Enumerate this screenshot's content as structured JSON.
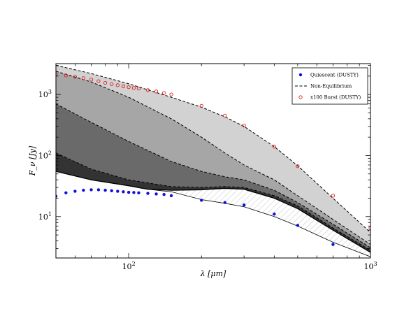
{
  "chart_data": {
    "type": "scatter",
    "xlabel": "λ [μm]",
    "ylabel": "F_ν [Jy]",
    "xscale": "log",
    "yscale": "log",
    "xlim": [
      50,
      1000
    ],
    "ylim": [
      2.1,
      3200
    ],
    "grid": false,
    "legend_position": "top-right",
    "x_ticks": [
      {
        "value": 100,
        "base": "10",
        "exp": "2"
      },
      {
        "value": 1000,
        "base": "10",
        "exp": "3"
      }
    ],
    "y_ticks": [
      {
        "value": 10,
        "base": "10",
        "exp": "1"
      },
      {
        "value": 100,
        "base": "10",
        "exp": "2"
      },
      {
        "value": 1000,
        "base": "10",
        "exp": "3"
      }
    ],
    "legend": [
      {
        "label": "Quiescent (DUSTY)",
        "marker": "filled-circle",
        "color": "#1010e0"
      },
      {
        "label": "Non-Equilibrium",
        "marker": "dashed-line",
        "color": "#000000"
      },
      {
        "label": "x100 Burst (DUSTY)",
        "marker": "open-circle",
        "color": "#e02020"
      }
    ],
    "series": [
      {
        "name": "Quiescent (DUSTY)",
        "style": "filled-circle",
        "color": "#1010e0",
        "x": [
          50,
          55,
          60,
          65,
          70,
          75,
          80,
          85,
          90,
          95,
          100,
          105,
          110,
          120,
          130,
          140,
          150,
          200,
          250,
          300,
          400,
          500,
          700
        ],
        "y": [
          21.5,
          24.5,
          26,
          27,
          27.5,
          27.5,
          27,
          26.5,
          26,
          25.5,
          25,
          24.8,
          24.5,
          24,
          23.5,
          23,
          22,
          18.5,
          17,
          15.5,
          11,
          7.2,
          3.5
        ]
      },
      {
        "name": "x100 Burst (DUSTY)",
        "style": "open-circle",
        "color": "#e02020",
        "x": [
          50,
          55,
          60,
          65,
          70,
          75,
          80,
          85,
          90,
          95,
          100,
          105,
          110,
          120,
          130,
          140,
          150,
          200,
          250,
          300,
          400,
          500,
          700,
          1000
        ],
        "y": [
          2150,
          2050,
          1950,
          1850,
          1750,
          1650,
          1550,
          1480,
          1420,
          1360,
          1320,
          1280,
          1250,
          1180,
          1120,
          1060,
          1000,
          650,
          450,
          310,
          140,
          67,
          22,
          6.5
        ]
      },
      {
        "name": "Non-Equilibrium",
        "style": "dashed-line",
        "color": "#000000",
        "curves": [
          {
            "x": [
              50,
              70,
              100,
              150,
              200,
              250,
              300,
              400,
              500,
              700,
              1000
            ],
            "y": [
              3000,
              2200,
              1500,
              900,
              620,
              430,
              300,
              140,
              68,
              20,
              5.5
            ]
          },
          {
            "x": [
              50,
              70,
              100,
              150,
              200,
              250,
              300,
              400,
              500,
              700,
              1000
            ],
            "y": [
              2400,
              1600,
              900,
              400,
              200,
              110,
              70,
              40,
              22,
              9,
              3.5
            ]
          },
          {
            "x": [
              50,
              70,
              100,
              150,
              200,
              250,
              300,
              400,
              500,
              700,
              1000
            ],
            "y": [
              700,
              350,
              170,
              80,
              55,
              45,
              40,
              27,
              17,
              7.5,
              3.1
            ]
          },
          {
            "x": [
              50,
              70,
              100,
              150,
              200,
              250,
              300,
              400,
              500,
              700,
              1000
            ],
            "y": [
              110,
              60,
              40,
              31,
              30,
              31,
              30,
              22,
              15,
              6.5,
              2.8
            ]
          }
        ]
      }
    ],
    "bands": [
      {
        "shade": "#d2d2d2",
        "upper": [
          [
            50,
            3000
          ],
          [
            70,
            2200
          ],
          [
            100,
            1500
          ],
          [
            150,
            900
          ],
          [
            200,
            620
          ],
          [
            250,
            430
          ],
          [
            300,
            300
          ],
          [
            400,
            140
          ],
          [
            500,
            68
          ],
          [
            700,
            20
          ],
          [
            1000,
            5.5
          ]
        ],
        "lower": [
          [
            50,
            2400
          ],
          [
            70,
            1600
          ],
          [
            100,
            900
          ],
          [
            150,
            400
          ],
          [
            200,
            200
          ],
          [
            250,
            110
          ],
          [
            300,
            70
          ],
          [
            400,
            40
          ],
          [
            500,
            22
          ],
          [
            700,
            9
          ],
          [
            1000,
            3.5
          ]
        ]
      },
      {
        "shade": "#a6a6a6",
        "upper": [
          [
            50,
            2400
          ],
          [
            70,
            1600
          ],
          [
            100,
            900
          ],
          [
            150,
            400
          ],
          [
            200,
            200
          ],
          [
            250,
            110
          ],
          [
            300,
            70
          ],
          [
            400,
            40
          ],
          [
            500,
            22
          ],
          [
            700,
            9
          ],
          [
            1000,
            3.5
          ]
        ],
        "lower": [
          [
            50,
            700
          ],
          [
            70,
            350
          ],
          [
            100,
            170
          ],
          [
            150,
            80
          ],
          [
            200,
            55
          ],
          [
            250,
            45
          ],
          [
            300,
            40
          ],
          [
            400,
            27
          ],
          [
            500,
            17
          ],
          [
            700,
            7.5
          ],
          [
            1000,
            3.1
          ]
        ]
      },
      {
        "shade": "#6a6a6a",
        "upper": [
          [
            50,
            700
          ],
          [
            70,
            350
          ],
          [
            100,
            170
          ],
          [
            150,
            80
          ],
          [
            200,
            55
          ],
          [
            250,
            45
          ],
          [
            300,
            40
          ],
          [
            400,
            27
          ],
          [
            500,
            17
          ],
          [
            700,
            7.5
          ],
          [
            1000,
            3.1
          ]
        ],
        "lower": [
          [
            50,
            110
          ],
          [
            70,
            60
          ],
          [
            100,
            40
          ],
          [
            150,
            31
          ],
          [
            200,
            30
          ],
          [
            250,
            31
          ],
          [
            300,
            30
          ],
          [
            400,
            22
          ],
          [
            500,
            15
          ],
          [
            700,
            6.5
          ],
          [
            1000,
            2.8
          ]
        ]
      },
      {
        "shade": "#333333",
        "upper": [
          [
            50,
            110
          ],
          [
            70,
            60
          ],
          [
            100,
            40
          ],
          [
            150,
            31
          ],
          [
            200,
            30
          ],
          [
            250,
            31
          ],
          [
            300,
            30
          ],
          [
            400,
            22
          ],
          [
            500,
            15
          ],
          [
            700,
            6.5
          ],
          [
            1000,
            2.8
          ]
        ],
        "lower": [
          [
            50,
            55
          ],
          [
            70,
            40
          ],
          [
            100,
            32
          ],
          [
            120,
            28
          ],
          [
            150,
            27
          ],
          [
            200,
            27.5
          ],
          [
            250,
            29
          ],
          [
            300,
            28
          ],
          [
            400,
            20
          ],
          [
            500,
            13.5
          ],
          [
            700,
            6
          ],
          [
            1000,
            2.6
          ]
        ]
      }
    ],
    "hatch_region": {
      "upper": [
        [
          50,
          55
        ],
        [
          70,
          40
        ],
        [
          100,
          32
        ],
        [
          120,
          28
        ],
        [
          150,
          27
        ],
        [
          200,
          27.5
        ],
        [
          250,
          29
        ],
        [
          300,
          28
        ],
        [
          400,
          20
        ],
        [
          500,
          13.5
        ],
        [
          700,
          6
        ],
        [
          1000,
          2.6
        ]
      ],
      "lower": [
        [
          50,
          55
        ],
        [
          70,
          40
        ],
        [
          100,
          32
        ],
        [
          120,
          28
        ],
        [
          150,
          25.5
        ],
        [
          200,
          19
        ],
        [
          250,
          16.5
        ],
        [
          300,
          14.5
        ],
        [
          400,
          10
        ],
        [
          500,
          7
        ],
        [
          700,
          3.8
        ],
        [
          1000,
          2.2
        ]
      ]
    },
    "outline_curve": {
      "x": [
        50,
        70,
        100,
        120,
        150,
        200,
        250,
        300,
        400,
        500,
        700,
        1000
      ],
      "y": [
        55,
        40,
        32,
        28,
        25.5,
        19,
        16.5,
        14.5,
        10,
        7,
        3.8,
        2.2
      ]
    }
  }
}
